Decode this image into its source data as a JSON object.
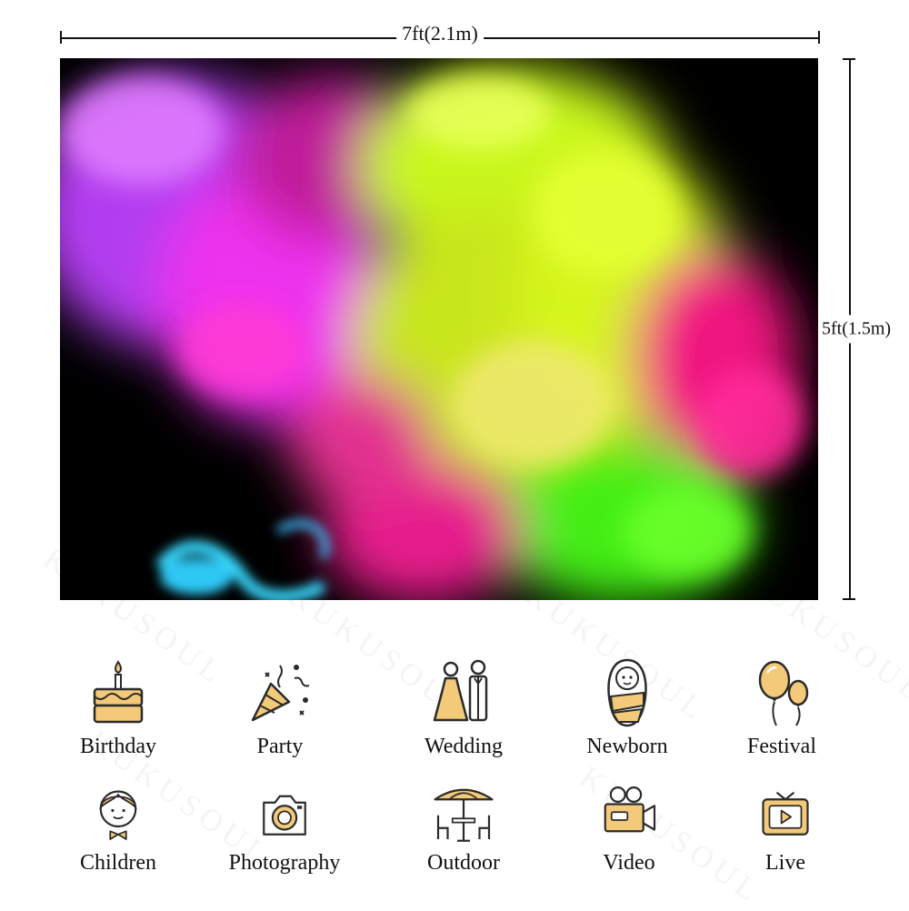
{
  "dimensions": {
    "width_label": "7ft(2.1m)",
    "height_label": "5ft(1.5m)"
  },
  "watermark_text": "KUKUSOUL",
  "features": [
    {
      "label": "Birthday",
      "icon": "birthday-cake-icon"
    },
    {
      "label": "Party",
      "icon": "party-popper-icon"
    },
    {
      "label": "Wedding",
      "icon": "wedding-couple-icon"
    },
    {
      "label": "Newborn",
      "icon": "newborn-baby-icon"
    },
    {
      "label": "Festival",
      "icon": "balloons-icon"
    },
    {
      "label": "Children",
      "icon": "child-icon"
    },
    {
      "label": "Photography",
      "icon": "camera-icon"
    },
    {
      "label": "Outdoor",
      "icon": "patio-umbrella-icon"
    },
    {
      "label": "Video",
      "icon": "video-camera-icon"
    },
    {
      "label": "Live",
      "icon": "live-tv-icon"
    }
  ],
  "colors": {
    "icon_fill": "#f3c97a",
    "icon_stroke": "#2b2b2b",
    "smoke_purple": "#c13cff",
    "smoke_magenta": "#ff1f8f",
    "smoke_yellow": "#d8ff1a",
    "smoke_green": "#3cff18",
    "smoke_cyan": "#31d6ff"
  }
}
